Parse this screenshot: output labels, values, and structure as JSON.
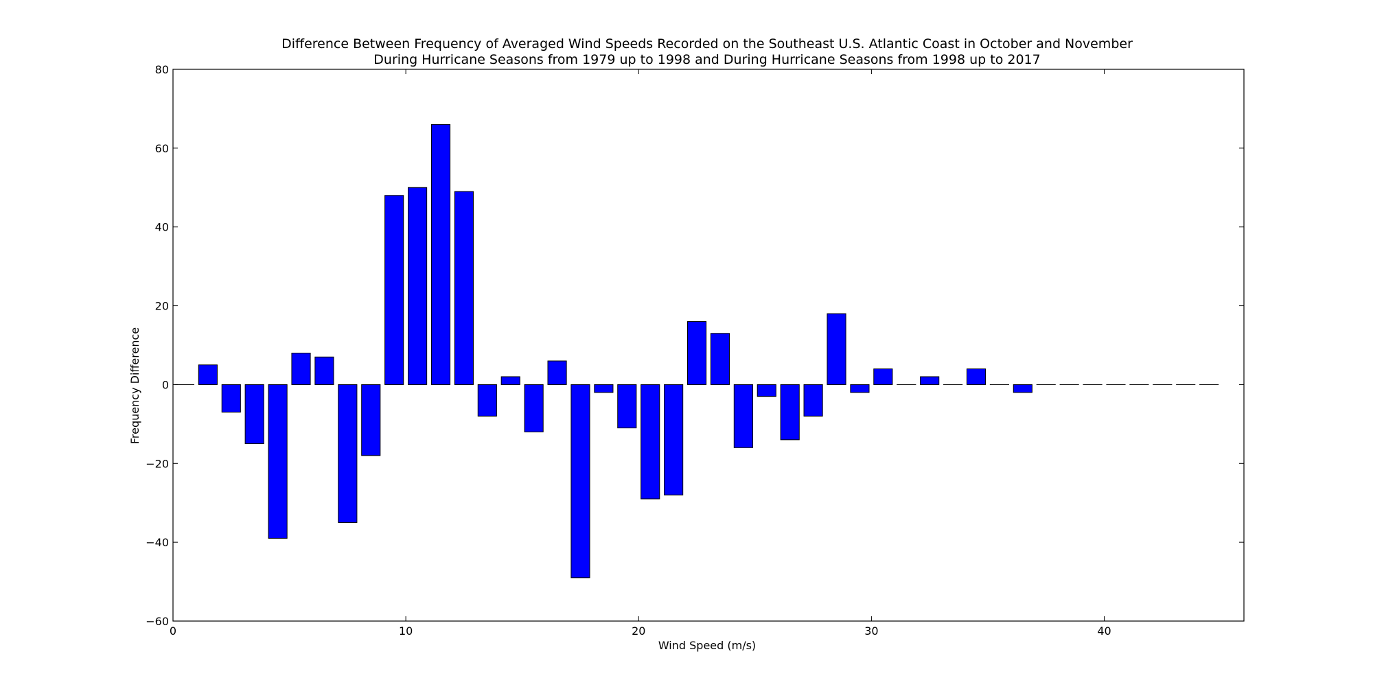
{
  "chart_data": {
    "type": "bar",
    "title_lines": [
      "Difference Between Frequency of Averaged Wind Speeds Recorded on the Southeast U.S. Atlantic Coast in October and November",
      "During Hurricane Seasons from 1979 up to 1998 and During Hurricane Seasons from 1998 up to 2017"
    ],
    "xlabel": "Wind Speed (m/s)",
    "ylabel": "Frequency Difference",
    "xlim": [
      0,
      46
    ],
    "ylim": [
      -60,
      80
    ],
    "xticks": [
      0,
      10,
      20,
      30,
      40
    ],
    "yticks": [
      -60,
      -40,
      -20,
      0,
      20,
      40,
      60,
      80
    ],
    "bar_color": "#0000ff",
    "bar_width": 0.8,
    "x": [
      0,
      1,
      2,
      3,
      4,
      5,
      6,
      7,
      8,
      9,
      10,
      11,
      12,
      13,
      14,
      15,
      16,
      17,
      18,
      19,
      20,
      21,
      22,
      23,
      24,
      25,
      26,
      27,
      28,
      29,
      30,
      31,
      32,
      33,
      34,
      35,
      36,
      37,
      38,
      39,
      40,
      41,
      42,
      43,
      44
    ],
    "values": [
      0,
      5,
      -7,
      -15,
      -39,
      8,
      7,
      -35,
      -18,
      48,
      50,
      66,
      49,
      -8,
      2,
      -12,
      6,
      -49,
      -2,
      -11,
      -29,
      -28,
      16,
      13,
      -16,
      -3,
      -14,
      -8,
      18,
      -2,
      4,
      0,
      2,
      0,
      4,
      0,
      -2,
      0,
      0,
      0,
      0,
      0,
      0,
      0,
      0
    ],
    "grid": false
  }
}
